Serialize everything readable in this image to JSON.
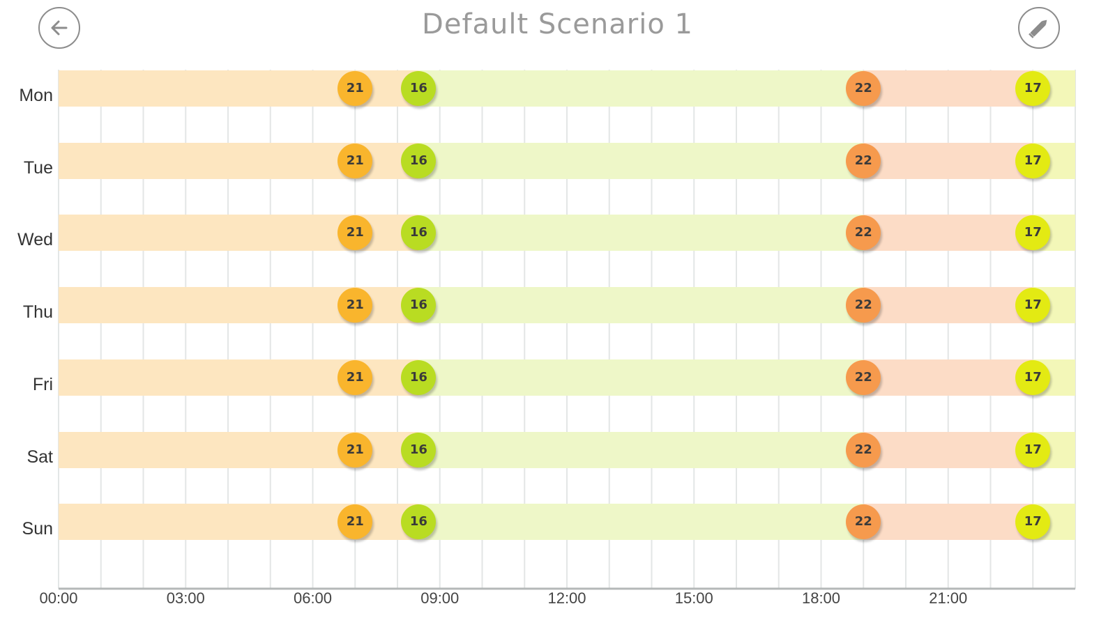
{
  "header": {
    "title": "Default Scenario 1",
    "back_icon": "arrow-left-icon",
    "edit_icon": "pencil-icon"
  },
  "colors": {
    "level_21": "#f9b52d",
    "level_16": "#b9dc22",
    "level_22": "#f69a4d",
    "level_17": "#e3ea13",
    "band_21": "#fde6c0",
    "band_16": "#eef7c8",
    "band_22": "#fcdcc6",
    "band_17": "#f3f7b8",
    "grid_line": "#e3e6e6",
    "axis_line": "#b4b8b8"
  },
  "axis": {
    "tick_labels": [
      "00:00",
      "03:00",
      "06:00",
      "09:00",
      "12:00",
      "15:00",
      "18:00",
      "21:00"
    ]
  },
  "schedule": {
    "day_start": "00:00",
    "day_end": "24:00",
    "points": [
      {
        "time": "07:00",
        "temp": "21",
        "level": "21"
      },
      {
        "time": "08:30",
        "temp": "16",
        "level": "16"
      },
      {
        "time": "19:00",
        "temp": "22",
        "level": "22"
      },
      {
        "time": "23:00",
        "temp": "17",
        "level": "17"
      }
    ]
  },
  "days": [
    {
      "label": "Mon"
    },
    {
      "label": "Tue"
    },
    {
      "label": "Wed"
    },
    {
      "label": "Thu"
    },
    {
      "label": "Fri"
    },
    {
      "label": "Sat"
    },
    {
      "label": "Sun"
    }
  ]
}
